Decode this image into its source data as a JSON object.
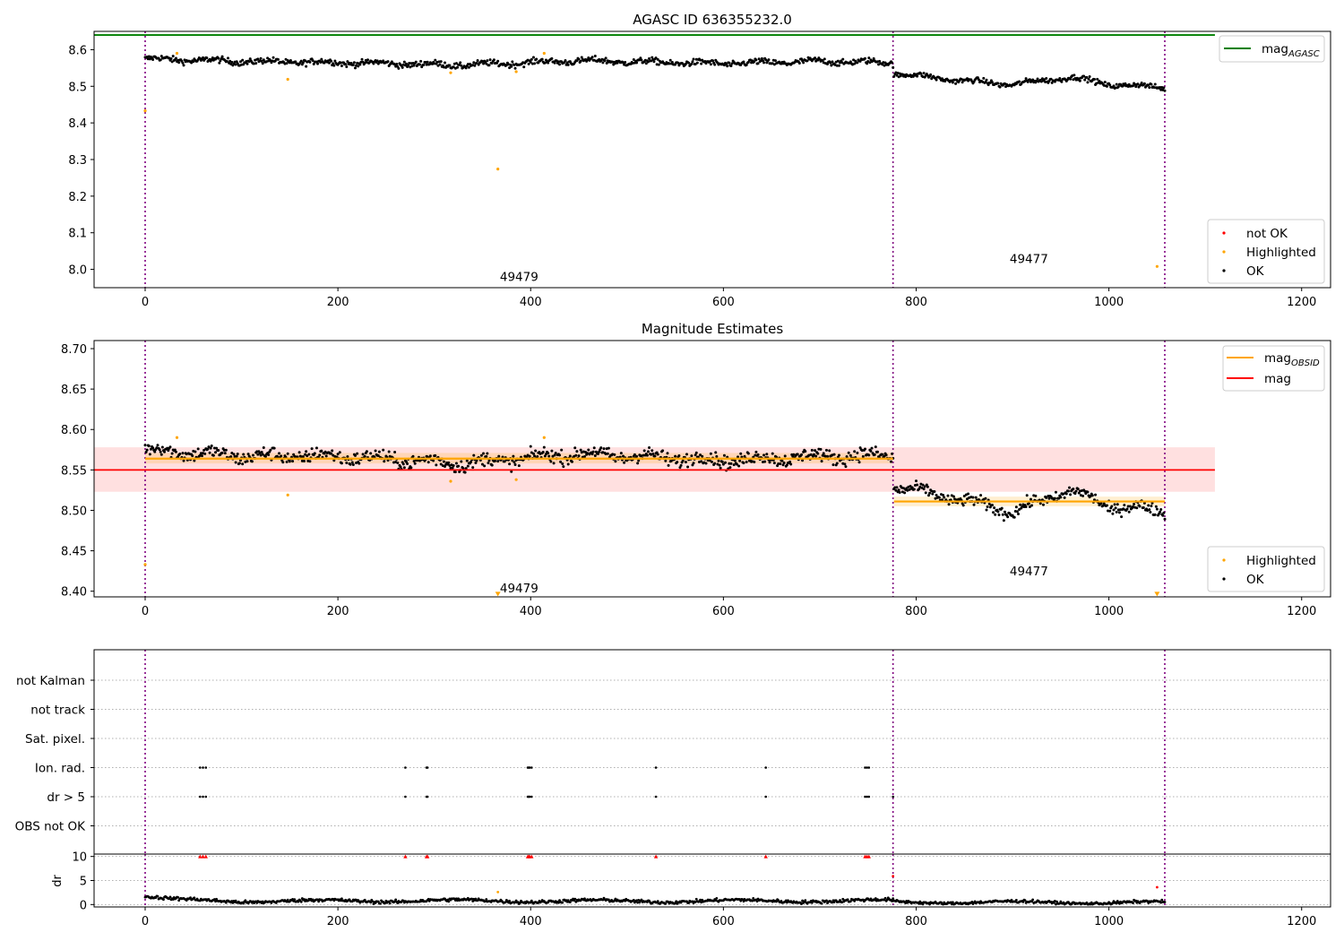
{
  "chart_data": [
    {
      "type": "scatter",
      "title": "AGASC ID 636355232.0",
      "xlabel": "",
      "ylabel": "",
      "xlim": [
        -53,
        1230
      ],
      "ylim": [
        7.95,
        8.65
      ],
      "x_ticks": [
        0,
        200,
        400,
        600,
        800,
        1000,
        1200
      ],
      "y_ticks": [
        8.0,
        8.1,
        8.2,
        8.3,
        8.4,
        8.5,
        8.6
      ],
      "y_tick_labels": [
        "8.0",
        "8.1",
        "8.2",
        "8.3",
        "8.4",
        "8.5",
        "8.6"
      ],
      "grid": false,
      "hlines": [
        {
          "name": "mag_AGASC",
          "y": 8.64,
          "x_range": [
            -53,
            1110
          ],
          "color": "#008000"
        }
      ],
      "vlines": [
        0,
        776,
        1058
      ],
      "obsid_labels": [
        {
          "text": "49479",
          "x": 388,
          "y": 7.98
        },
        {
          "text": "49477",
          "x": 917,
          "y": 8.03
        }
      ],
      "legend_line": {
        "label_main": "mag",
        "label_sub": "AGASC",
        "placement": "upper right"
      },
      "legend_points": {
        "placement": "lower right",
        "entries": [
          {
            "label": "not OK",
            "color": "#ff0000"
          },
          {
            "label": "Highlighted",
            "color": "#ffa500"
          },
          {
            "label": "OK",
            "color": "#000000"
          }
        ]
      },
      "series": [
        {
          "name": "OK",
          "color": "#000000",
          "segments": [
            {
              "x_range": [
                0,
                776
              ],
              "base": 8.566,
              "trend": [
                [
                  0,
                  8.575
                ],
                [
                  100,
                  8.568
                ],
                [
                  200,
                  8.565
                ],
                [
                  330,
                  8.558
                ],
                [
                  450,
                  8.57
                ],
                [
                  600,
                  8.562
                ],
                [
                  700,
                  8.568
                ],
                [
                  776,
                  8.565
                ]
              ],
              "noise": 0.007
            },
            {
              "x_range": [
                777,
                1058
              ],
              "trend": [
                [
                  777,
                  8.535
                ],
                [
                  850,
                  8.515
                ],
                [
                  900,
                  8.505
                ],
                [
                  960,
                  8.525
                ],
                [
                  1000,
                  8.505
                ],
                [
                  1058,
                  8.497
                ]
              ],
              "noise": 0.006
            }
          ]
        },
        {
          "name": "Highlighted",
          "color": "#ffa500",
          "points": [
            [
              0,
              8.433
            ],
            [
              33,
              8.59
            ],
            [
              148,
              8.519
            ],
            [
              317,
              8.537
            ],
            [
              385,
              8.54
            ],
            [
              414,
              8.59
            ],
            [
              366,
              8.274
            ],
            [
              1050,
              8.008
            ]
          ]
        }
      ]
    },
    {
      "type": "scatter",
      "title": "Magnitude Estimates",
      "xlabel": "",
      "ylabel": "",
      "xlim": [
        -53,
        1230
      ],
      "ylim": [
        8.393,
        8.71
      ],
      "x_ticks": [
        0,
        200,
        400,
        600,
        800,
        1000,
        1200
      ],
      "y_ticks": [
        8.4,
        8.45,
        8.5,
        8.55,
        8.6,
        8.65,
        8.7
      ],
      "y_tick_labels": [
        "8.40",
        "8.45",
        "8.50",
        "8.55",
        "8.60",
        "8.65",
        "8.70"
      ],
      "grid": false,
      "mag": {
        "y": 8.55,
        "band": [
          8.523,
          8.578
        ],
        "x_range": [
          -53,
          1110
        ],
        "color": "#ff0000"
      },
      "mag_obsid": [
        {
          "y": 8.564,
          "band": [
            8.558,
            8.571
          ],
          "x_range": [
            0,
            776
          ],
          "color": "#ffa500"
        },
        {
          "y": 8.511,
          "band": [
            8.505,
            8.517
          ],
          "x_range": [
            777,
            1058
          ],
          "color": "#ffa500"
        }
      ],
      "vlines": [
        0,
        776,
        1058
      ],
      "obsid_labels": [
        {
          "text": "49479",
          "x": 388,
          "y": 8.404
        },
        {
          "text": "49477",
          "x": 917,
          "y": 8.425
        }
      ],
      "legend_lines": {
        "placement": "upper right",
        "entries": [
          {
            "label_main": "mag",
            "label_sub": "OBSID",
            "color": "#ffa500"
          },
          {
            "label_main": "mag",
            "label_sub": "",
            "color": "#ff0000"
          }
        ]
      },
      "legend_points": {
        "placement": "lower right",
        "entries": [
          {
            "label": "Highlighted",
            "color": "#ffa500"
          },
          {
            "label": "OK",
            "color": "#000000"
          }
        ]
      },
      "series": [
        {
          "name": "OK",
          "color": "#000000",
          "segments": [
            {
              "x_range": [
                0,
                776
              ],
              "trend": [
                [
                  0,
                  8.575
                ],
                [
                  100,
                  8.567
                ],
                [
                  200,
                  8.567
                ],
                [
                  330,
                  8.558
                ],
                [
                  450,
                  8.57
                ],
                [
                  600,
                  8.562
                ],
                [
                  700,
                  8.567
                ],
                [
                  776,
                  8.568
                ]
              ],
              "noise": 0.007
            },
            {
              "x_range": [
                777,
                1058
              ],
              "trend": [
                [
                  777,
                  8.53
                ],
                [
                  850,
                  8.512
                ],
                [
                  900,
                  8.498
                ],
                [
                  960,
                  8.525
                ],
                [
                  1000,
                  8.505
                ],
                [
                  1058,
                  8.5
                ]
              ],
              "noise": 0.006
            }
          ]
        },
        {
          "name": "Highlighted",
          "color": "#ffa500",
          "points": [
            [
              0,
              8.433
            ],
            [
              33,
              8.59
            ],
            [
              148,
              8.519
            ],
            [
              317,
              8.536
            ],
            [
              385,
              8.538
            ],
            [
              414,
              8.59
            ]
          ]
        },
        {
          "name": "Highlighted (below range)",
          "color": "#ffa500",
          "marker": "triangle-down",
          "points": [
            [
              366,
              8.397
            ],
            [
              1050,
              8.397
            ]
          ]
        }
      ]
    },
    {
      "type": "scatter",
      "title": "",
      "xlabel": "",
      "ylabel": "",
      "xlim": [
        -53,
        1230
      ],
      "categories": [
        "not Kalman",
        "not track",
        "Sat. pixel.",
        "Ion. rad.",
        "dr > 5",
        "OBS not OK"
      ],
      "grid": "dotted horizontal",
      "vlines": [
        0,
        776,
        1058
      ],
      "flags": {
        "Ion. rad.": [
          57,
          60,
          63,
          270,
          292,
          293,
          397,
          398,
          399,
          401,
          530,
          644,
          747,
          749,
          751
        ],
        "dr > 5": [
          57,
          60,
          63,
          270,
          292,
          293,
          397,
          398,
          399,
          401,
          530,
          644,
          747,
          749,
          751,
          776
        ]
      }
    },
    {
      "type": "scatter",
      "title": "",
      "xlabel": "",
      "ylabel": "dr",
      "xlim": [
        -53,
        1230
      ],
      "ylim": [
        -0.5,
        10.5
      ],
      "x_ticks": [
        0,
        200,
        400,
        600,
        800,
        1000,
        1200
      ],
      "y_ticks": [
        0,
        5,
        10
      ],
      "y_tick_labels": [
        "0",
        "5",
        "10"
      ],
      "grid": "dotted horizontal",
      "vlines": [
        0,
        776,
        1058
      ],
      "clipped_markers": {
        "y": 10,
        "color": "#ff0000",
        "x": [
          57,
          60,
          63,
          270,
          292,
          293,
          397,
          398,
          399,
          401,
          530,
          644,
          747,
          749,
          751
        ]
      },
      "series": [
        {
          "name": "OK",
          "color": "#000000",
          "segments": [
            {
              "x_range": [
                0,
                776
              ],
              "trend": [
                [
                  0,
                  1.6
                ],
                [
                  30,
                  1.0
                ],
                [
                  100,
                  0.7
                ],
                [
                  300,
                  0.8
                ],
                [
                  500,
                  0.7
                ],
                [
                  776,
                  0.8
                ]
              ],
              "noise": 0.35
            },
            {
              "x_range": [
                777,
                1058
              ],
              "trend": [
                [
                  777,
                  0.5
                ],
                [
                  1058,
                  0.4
                ]
              ],
              "noise": 0.3
            }
          ]
        },
        {
          "name": "Highlighted",
          "color": "#ffa500",
          "points": [
            [
              366,
              2.6
            ]
          ]
        },
        {
          "name": "not OK",
          "color": "#ff0000",
          "points": [
            [
              776,
              5.9
            ],
            [
              1050,
              3.6
            ]
          ]
        }
      ]
    }
  ]
}
